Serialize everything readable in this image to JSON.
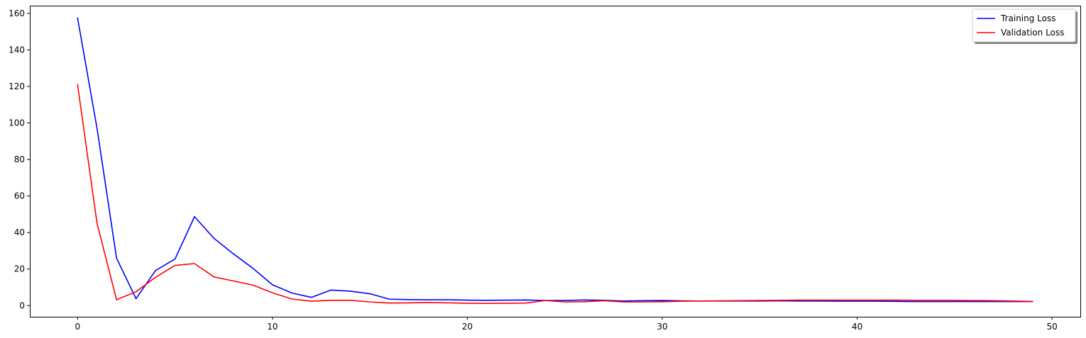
{
  "chart_data": {
    "type": "line",
    "title": "",
    "xlabel": "",
    "ylabel": "",
    "xlim": [
      -2.45,
      51.45
    ],
    "ylim": [
      -6.1,
      164.2
    ],
    "x_ticks": [
      0,
      10,
      20,
      30,
      40,
      50
    ],
    "y_ticks": [
      0,
      20,
      40,
      60,
      80,
      100,
      120,
      140,
      160
    ],
    "grid": false,
    "legend_position": "top-right",
    "x": [
      0,
      1,
      2,
      3,
      4,
      5,
      6,
      7,
      8,
      9,
      10,
      11,
      12,
      13,
      14,
      15,
      16,
      17,
      18,
      19,
      20,
      21,
      22,
      23,
      24,
      25,
      26,
      27,
      28,
      29,
      30,
      31,
      32,
      33,
      34,
      35,
      36,
      37,
      38,
      39,
      40,
      41,
      42,
      43,
      44,
      45,
      46,
      47,
      48,
      49
    ],
    "series": [
      {
        "name": "Training Loss",
        "color": "#0000ff",
        "values": [
          157.5,
          97.0,
          26.0,
          3.8,
          19.2,
          25.5,
          48.7,
          36.8,
          28.3,
          20.4,
          11.4,
          6.9,
          4.5,
          8.5,
          7.9,
          6.5,
          3.5,
          3.3,
          3.2,
          3.2,
          3.0,
          2.9,
          3.0,
          3.1,
          2.8,
          2.8,
          3.1,
          2.9,
          2.5,
          2.7,
          2.8,
          2.6,
          2.5,
          2.5,
          2.5,
          2.5,
          2.6,
          2.5,
          2.5,
          2.4,
          2.4,
          2.4,
          2.3,
          2.2,
          2.2,
          2.2,
          2.2,
          2.2,
          2.2,
          2.2
        ]
      },
      {
        "name": "Validation Loss",
        "color": "#ff0000",
        "values": [
          121.0,
          45.0,
          3.2,
          7.6,
          15.5,
          22.0,
          23.0,
          15.7,
          13.5,
          11.2,
          7.0,
          3.6,
          2.4,
          2.9,
          2.9,
          2.0,
          1.4,
          1.5,
          1.7,
          1.5,
          1.3,
          1.2,
          1.3,
          1.4,
          2.8,
          2.0,
          2.1,
          2.7,
          2.0,
          2.0,
          2.1,
          2.4,
          2.5,
          2.6,
          2.7,
          2.8,
          2.9,
          3.0,
          3.0,
          3.0,
          3.0,
          3.0,
          3.0,
          2.9,
          2.9,
          2.9,
          2.8,
          2.7,
          2.5,
          2.3
        ]
      }
    ]
  }
}
